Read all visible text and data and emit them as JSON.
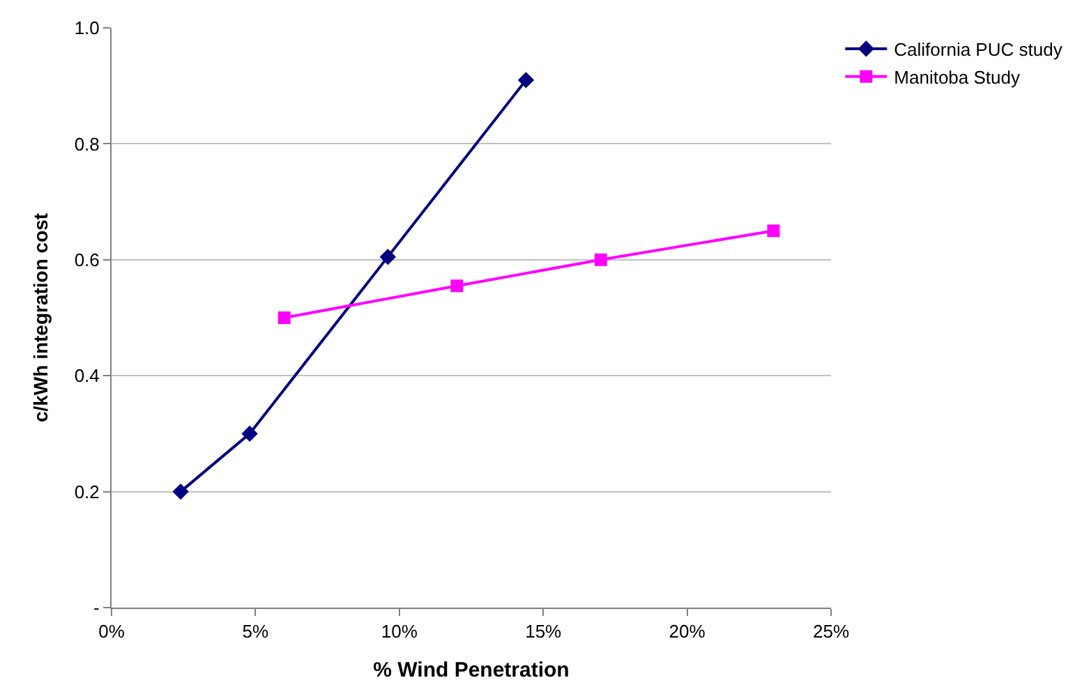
{
  "chart_data": {
    "type": "line",
    "xlabel": "% Wind Penetration",
    "ylabel": "c/kWh integration cost",
    "series": [
      {
        "name": "California PUC study",
        "color": "#000080",
        "marker": "diamond",
        "x": [
          0.024,
          0.048,
          0.096,
          0.144
        ],
        "values": [
          0.2,
          0.3,
          0.605,
          0.91
        ]
      },
      {
        "name": "Manitoba Study",
        "color": "#ff00ff",
        "marker": "square",
        "x": [
          0.06,
          0.12,
          0.17,
          0.23
        ],
        "values": [
          0.5,
          0.555,
          0.6,
          0.65
        ]
      }
    ],
    "xlim": [
      0,
      0.25
    ],
    "xticks": [
      {
        "value": 0,
        "label": "0%"
      },
      {
        "value": 0.05,
        "label": "5%"
      },
      {
        "value": 0.1,
        "label": "10%"
      },
      {
        "value": 0.15,
        "label": "15%"
      },
      {
        "value": 0.2,
        "label": "20%"
      },
      {
        "value": 0.25,
        "label": "25%"
      }
    ],
    "ylim": [
      0,
      1
    ],
    "yticks": [
      {
        "value": 0,
        "label": "-"
      },
      0.2,
      0.4,
      0.6,
      0.8,
      {
        "value": 1,
        "label": "1.0"
      }
    ],
    "grid": "y",
    "legend": "top right",
    "line_style": "solid"
  }
}
